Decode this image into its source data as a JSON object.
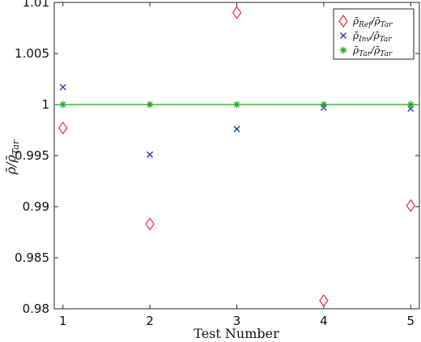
{
  "chart_data": {
    "type": "scatter",
    "title": "",
    "xlabel": "Test Number",
    "ylabel": "ρ̄/ρ̄_Tar",
    "xlim": [
      0.9,
      5.1
    ],
    "ylim": [
      0.98,
      1.01
    ],
    "x_ticks": [
      1,
      2,
      3,
      4,
      5
    ],
    "x_tick_labels": [
      "1",
      "2",
      "3",
      "4",
      "5"
    ],
    "y_ticks": [
      0.98,
      0.985,
      0.99,
      0.995,
      1,
      1.005,
      1.01
    ],
    "y_tick_labels": [
      "0.98",
      "0.985",
      "0.99",
      "0.995",
      "1",
      "1.005",
      "1.01"
    ],
    "grid": false,
    "legend_position": "top-right",
    "series": [
      {
        "name": "ρ̄_Ref/ρ̄_Tar",
        "marker": "diamond",
        "color": "#e0202a",
        "x": [
          1,
          2,
          3,
          4,
          5
        ],
        "y": [
          0.9977,
          0.9883,
          1.009,
          0.9808,
          0.9901
        ]
      },
      {
        "name": "ρ̄_Inv/ρ̄_Tar",
        "marker": "x",
        "color": "#1f2fbf",
        "x": [
          1,
          2,
          3,
          4,
          5
        ],
        "y": [
          1.0017,
          0.9951,
          0.9976,
          0.9997,
          0.9996
        ]
      },
      {
        "name": "ρ̄_Tar/ρ̄_Tar",
        "marker": "asterisk",
        "color": "#1aa31a",
        "line": true,
        "x": [
          1,
          2,
          3,
          4,
          5
        ],
        "y": [
          1,
          1,
          1,
          1,
          1
        ]
      }
    ]
  }
}
